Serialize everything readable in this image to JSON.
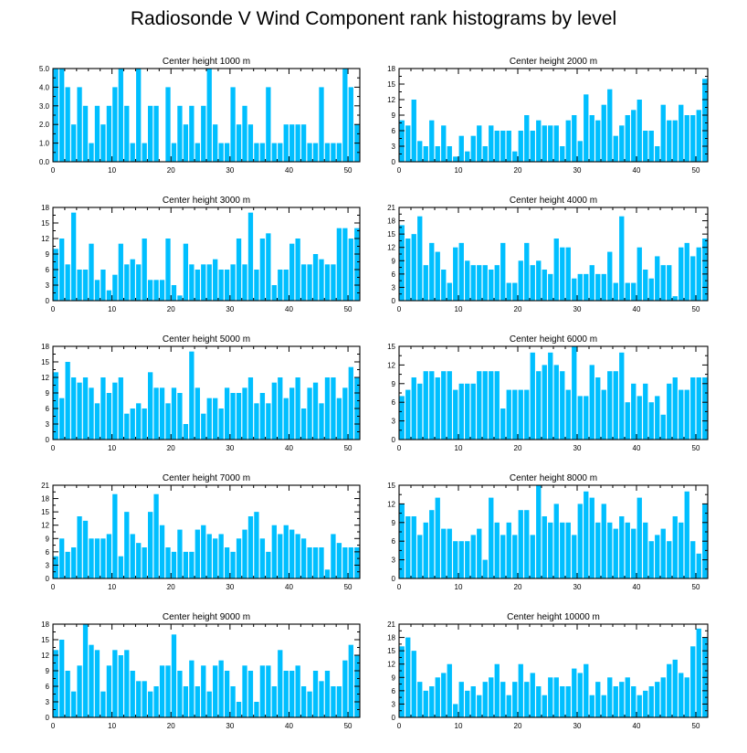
{
  "title": "Radiosonde V Wind Component rank histograms by level",
  "bar_color": "#00bfff",
  "chart_data": [
    {
      "type": "bar",
      "title": "Center height 1000 m",
      "xlim": [
        0,
        52
      ],
      "xticks": [
        0,
        10,
        20,
        30,
        40,
        50
      ],
      "ylim": [
        0,
        5
      ],
      "yticks": [
        "0.0",
        "1.0",
        "2.0",
        "3.0",
        "4.0",
        "5.0"
      ],
      "ytick_values": [
        0,
        1,
        2,
        3,
        4,
        5
      ],
      "values": [
        5,
        5,
        4,
        2,
        4,
        3,
        1,
        3,
        2,
        3,
        4,
        5,
        3,
        1,
        5,
        1,
        3,
        3,
        0,
        4,
        1,
        3,
        2,
        3,
        1,
        3,
        5,
        2,
        1,
        1,
        4,
        2,
        3,
        2,
        1,
        1,
        4,
        1,
        1,
        2,
        2,
        2,
        2,
        1,
        1,
        4,
        1,
        1,
        1,
        5,
        4,
        2
      ]
    },
    {
      "type": "bar",
      "title": "Center height 2000 m",
      "xlim": [
        0,
        52
      ],
      "xticks": [
        0,
        10,
        20,
        30,
        40,
        50
      ],
      "ylim": [
        0,
        18
      ],
      "yticks": [
        "0",
        "3",
        "6",
        "9",
        "12",
        "15",
        "18"
      ],
      "ytick_values": [
        0,
        3,
        6,
        9,
        12,
        15,
        18
      ],
      "values": [
        8,
        7,
        12,
        4,
        3,
        8,
        3,
        7,
        3,
        1,
        5,
        2,
        5,
        7,
        3,
        7,
        6,
        6,
        6,
        2,
        6,
        9,
        6,
        8,
        7,
        7,
        7,
        3,
        8,
        9,
        4,
        13,
        9,
        8,
        11,
        14,
        5,
        7,
        9,
        10,
        12,
        6,
        6,
        3,
        11,
        8,
        8,
        11,
        9,
        9,
        10,
        16
      ]
    },
    {
      "type": "bar",
      "title": "Center height 3000 m",
      "xlim": [
        0,
        52
      ],
      "xticks": [
        0,
        10,
        20,
        30,
        40,
        50
      ],
      "ylim": [
        0,
        18
      ],
      "yticks": [
        "0",
        "3",
        "6",
        "9",
        "12",
        "15",
        "18"
      ],
      "ytick_values": [
        0,
        3,
        6,
        9,
        12,
        15,
        18
      ],
      "values": [
        10,
        12,
        7,
        17,
        6,
        6,
        11,
        4,
        6,
        2,
        5,
        11,
        7,
        8,
        7,
        12,
        4,
        4,
        4,
        12,
        3,
        1,
        11,
        7,
        6,
        7,
        7,
        8,
        6,
        6,
        7,
        12,
        7,
        17,
        6,
        12,
        13,
        3,
        6,
        6,
        11,
        12,
        7,
        7,
        9,
        8,
        7,
        7,
        14,
        14,
        12,
        14
      ]
    },
    {
      "type": "bar",
      "title": "Center height 4000 m",
      "xlim": [
        0,
        52
      ],
      "xticks": [
        0,
        10,
        20,
        30,
        40,
        50
      ],
      "ylim": [
        0,
        21
      ],
      "yticks": [
        "0",
        "3",
        "6",
        "9",
        "12",
        "15",
        "18",
        "21"
      ],
      "ytick_values": [
        0,
        3,
        6,
        9,
        12,
        15,
        18,
        21
      ],
      "values": [
        17,
        14,
        15,
        19,
        8,
        13,
        11,
        7,
        4,
        12,
        13,
        9,
        8,
        8,
        8,
        7,
        8,
        13,
        4,
        4,
        9,
        13,
        8,
        9,
        7,
        6,
        14,
        12,
        12,
        5,
        6,
        6,
        8,
        6,
        6,
        11,
        4,
        19,
        4,
        4,
        12,
        7,
        5,
        10,
        8,
        8,
        1,
        12,
        13,
        10,
        12,
        14
      ]
    },
    {
      "type": "bar",
      "title": "Center height 5000 m",
      "xlim": [
        0,
        52
      ],
      "xticks": [
        0,
        10,
        20,
        30,
        40,
        50
      ],
      "ylim": [
        0,
        18
      ],
      "yticks": [
        "0",
        "3",
        "6",
        "9",
        "12",
        "15",
        "18"
      ],
      "ytick_values": [
        0,
        3,
        6,
        9,
        12,
        15,
        18
      ],
      "values": [
        13,
        8,
        15,
        12,
        11,
        12,
        10,
        7,
        12,
        9,
        11,
        12,
        5,
        6,
        7,
        6,
        13,
        10,
        10,
        7,
        10,
        9,
        3,
        17,
        10,
        5,
        8,
        8,
        6,
        10,
        9,
        9,
        10,
        12,
        7,
        9,
        7,
        11,
        12,
        8,
        10,
        12,
        6,
        10,
        11,
        7,
        12,
        12,
        8,
        10,
        14,
        12
      ]
    },
    {
      "type": "bar",
      "title": "Center height 6000 m",
      "xlim": [
        0,
        52
      ],
      "xticks": [
        0,
        10,
        20,
        30,
        40,
        50
      ],
      "ylim": [
        0,
        15
      ],
      "yticks": [
        "0",
        "3",
        "6",
        "9",
        "12",
        "15"
      ],
      "ytick_values": [
        0,
        3,
        6,
        9,
        12,
        15
      ],
      "values": [
        7,
        8,
        10,
        9,
        11,
        11,
        10,
        11,
        11,
        8,
        9,
        9,
        9,
        11,
        11,
        11,
        11,
        5,
        8,
        8,
        8,
        8,
        14,
        11,
        12,
        14,
        12,
        11,
        8,
        15,
        7,
        7,
        12,
        10,
        8,
        11,
        11,
        14,
        6,
        9,
        7,
        9,
        6,
        7,
        4,
        9,
        10,
        8,
        8,
        10,
        10,
        10
      ]
    },
    {
      "type": "bar",
      "title": "Center height 7000 m",
      "xlim": [
        0,
        52
      ],
      "xticks": [
        0,
        10,
        20,
        30,
        40,
        50
      ],
      "ylim": [
        0,
        21
      ],
      "yticks": [
        "0",
        "3",
        "6",
        "9",
        "12",
        "15",
        "18",
        "21"
      ],
      "ytick_values": [
        0,
        3,
        6,
        9,
        12,
        15,
        18,
        21
      ],
      "values": [
        5,
        9,
        6,
        7,
        14,
        13,
        9,
        9,
        9,
        10,
        19,
        5,
        15,
        10,
        8,
        7,
        15,
        19,
        12,
        7,
        6,
        11,
        6,
        6,
        11,
        12,
        10,
        9,
        10,
        7,
        6,
        9,
        11,
        14,
        15,
        9,
        6,
        12,
        10,
        12,
        11,
        10,
        9,
        7,
        7,
        7,
        2,
        10,
        8,
        7,
        7,
        7
      ]
    },
    {
      "type": "bar",
      "title": "Center height 8000 m",
      "xlim": [
        0,
        52
      ],
      "xticks": [
        0,
        10,
        20,
        30,
        40,
        50
      ],
      "ylim": [
        0,
        15
      ],
      "yticks": [
        "0",
        "3",
        "6",
        "9",
        "12",
        "15"
      ],
      "ytick_values": [
        0,
        3,
        6,
        9,
        12,
        15
      ],
      "values": [
        12,
        10,
        10,
        7,
        9,
        11,
        13,
        8,
        8,
        6,
        6,
        6,
        7,
        8,
        3,
        13,
        9,
        7,
        9,
        7,
        11,
        11,
        7,
        15,
        10,
        9,
        12,
        9,
        9,
        7,
        12,
        14,
        13,
        9,
        12,
        9,
        8,
        10,
        9,
        8,
        13,
        9,
        6,
        7,
        8,
        6,
        10,
        9,
        14,
        6,
        4,
        12
      ]
    },
    {
      "type": "bar",
      "title": "Center height 9000 m",
      "xlim": [
        0,
        52
      ],
      "xticks": [
        0,
        10,
        20,
        30,
        40,
        50
      ],
      "ylim": [
        0,
        18
      ],
      "yticks": [
        "0",
        "3",
        "6",
        "9",
        "12",
        "15",
        "18"
      ],
      "ytick_values": [
        0,
        3,
        6,
        9,
        12,
        15,
        18
      ],
      "values": [
        13,
        15,
        9,
        5,
        10,
        18,
        14,
        13,
        5,
        10,
        13,
        12,
        13,
        9,
        7,
        7,
        5,
        6,
        10,
        10,
        16,
        9,
        6,
        11,
        6,
        10,
        5,
        10,
        11,
        9,
        6,
        3,
        10,
        9,
        3,
        10,
        10,
        6,
        13,
        9,
        9,
        10,
        6,
        5,
        9,
        7,
        9,
        6,
        6,
        11,
        14,
        12
      ]
    },
    {
      "type": "bar",
      "title": "Center height 10000 m",
      "xlim": [
        0,
        52
      ],
      "xticks": [
        0,
        10,
        20,
        30,
        40,
        50
      ],
      "ylim": [
        0,
        21
      ],
      "yticks": [
        "0",
        "3",
        "6",
        "9",
        "12",
        "15",
        "18",
        "21"
      ],
      "ytick_values": [
        0,
        3,
        6,
        9,
        12,
        15,
        18,
        21
      ],
      "values": [
        16,
        18,
        15,
        8,
        6,
        7,
        9,
        10,
        12,
        3,
        8,
        6,
        7,
        5,
        8,
        9,
        12,
        8,
        5,
        8,
        12,
        8,
        10,
        7,
        5,
        9,
        9,
        7,
        7,
        11,
        10,
        12,
        5,
        8,
        5,
        9,
        7,
        8,
        9,
        7,
        5,
        6,
        7,
        8,
        9,
        12,
        13,
        10,
        9,
        16,
        20,
        18
      ]
    }
  ]
}
